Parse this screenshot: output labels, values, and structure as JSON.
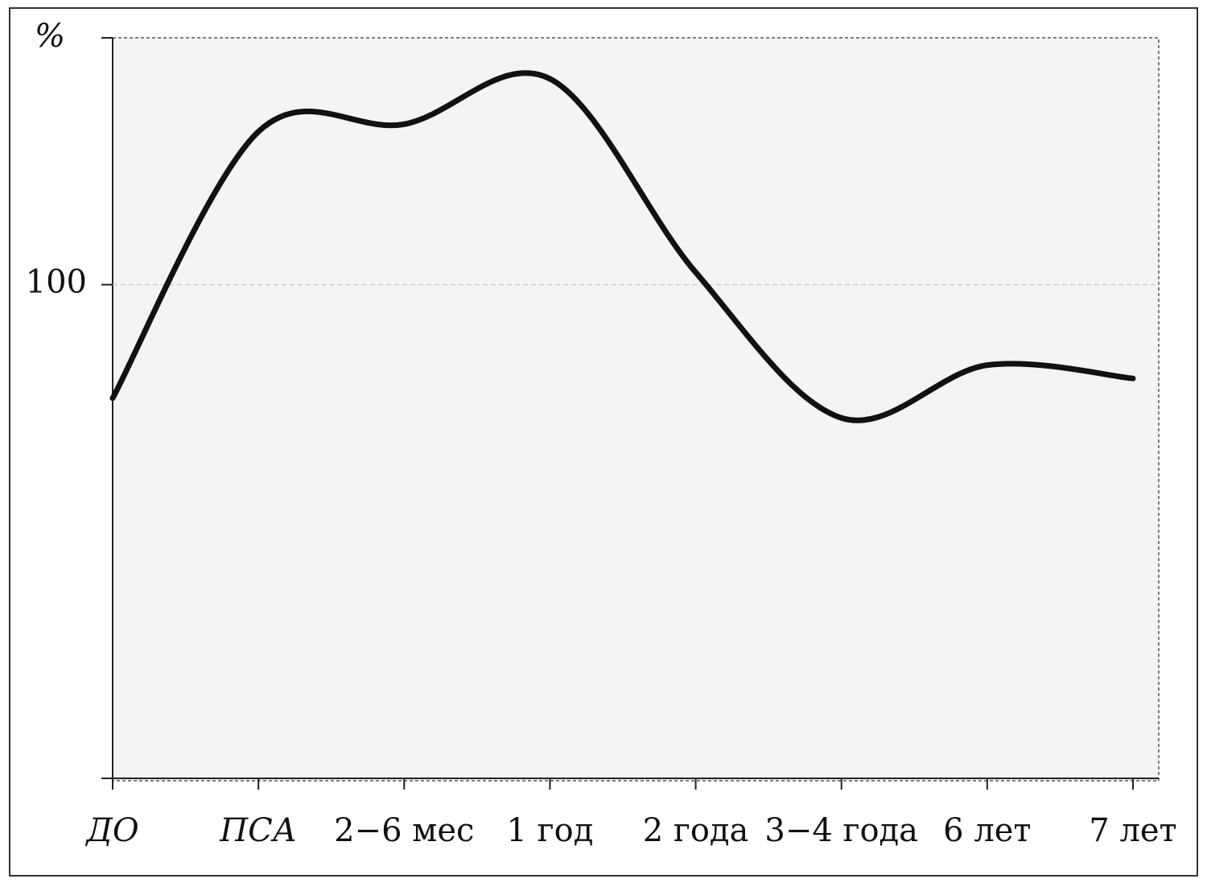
{
  "chart_data": {
    "type": "line",
    "y_label": "%",
    "categories": [
      "ДО",
      "ПСА",
      "2−6 мес",
      "1 год",
      "2 года",
      "3−4 года",
      "6 лет",
      "7 лет"
    ],
    "series": [
      {
        "name": "%",
        "color": "#111111",
        "values": [
          77,
          131,
          132.5,
          141.7,
          102.5,
          73,
          83.7,
          81
        ]
      }
    ],
    "ylim": [
      0,
      150
    ],
    "yticks": [
      100
    ],
    "grid": true
  }
}
